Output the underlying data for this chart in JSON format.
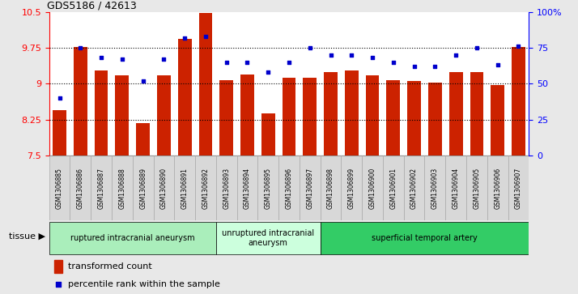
{
  "title": "GDS5186 / 42613",
  "samples": [
    "GSM1306885",
    "GSM1306886",
    "GSM1306887",
    "GSM1306888",
    "GSM1306889",
    "GSM1306890",
    "GSM1306891",
    "GSM1306892",
    "GSM1306893",
    "GSM1306894",
    "GSM1306895",
    "GSM1306896",
    "GSM1306897",
    "GSM1306898",
    "GSM1306899",
    "GSM1306900",
    "GSM1306901",
    "GSM1306902",
    "GSM1306903",
    "GSM1306904",
    "GSM1306905",
    "GSM1306906",
    "GSM1306907"
  ],
  "bar_values": [
    8.45,
    9.76,
    9.28,
    9.18,
    8.18,
    9.18,
    9.93,
    10.47,
    9.08,
    9.2,
    8.38,
    9.13,
    9.13,
    9.25,
    9.28,
    9.18,
    9.08,
    9.05,
    9.02,
    9.25,
    9.25,
    8.98,
    9.76
  ],
  "percentile_values": [
    40,
    75,
    68,
    67,
    52,
    67,
    82,
    83,
    65,
    65,
    58,
    65,
    75,
    70,
    70,
    68,
    65,
    62,
    62,
    70,
    75,
    63,
    76
  ],
  "groups": [
    {
      "label": "ruptured intracranial aneurysm",
      "start": 0,
      "end": 8,
      "color": "#aaeebb"
    },
    {
      "label": "unruptured intracranial\naneurysm",
      "start": 8,
      "end": 13,
      "color": "#ccffdd"
    },
    {
      "label": "superficial temporal artery",
      "start": 13,
      "end": 23,
      "color": "#33cc66"
    }
  ],
  "ylim_left": [
    7.5,
    10.5
  ],
  "ylim_right": [
    0,
    100
  ],
  "yticks_left": [
    7.5,
    8.25,
    9.0,
    9.75,
    10.5
  ],
  "ytick_labels_left": [
    "7.5",
    "8.25",
    "9",
    "9.75",
    "10.5"
  ],
  "yticks_right": [
    0,
    25,
    50,
    75,
    100
  ],
  "ytick_labels_right": [
    "0",
    "25",
    "50",
    "75",
    "100%"
  ],
  "hlines": [
    8.25,
    9.0,
    9.75
  ],
  "bar_color": "#cc2200",
  "dot_color": "#0000cc",
  "bar_width": 0.65,
  "tissue_label": "tissue ▶",
  "legend_bar_label": "transformed count",
  "legend_dot_label": "percentile rank within the sample",
  "background_color": "#e8e8e8",
  "plot_bg_color": "#ffffff",
  "xtick_bg_color": "#d8d8d8"
}
